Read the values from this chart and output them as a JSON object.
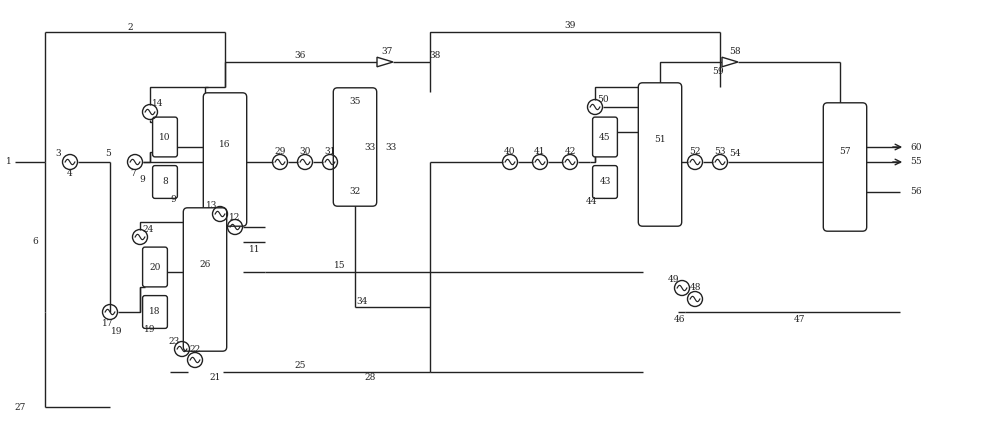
{
  "fig_width": 10.0,
  "fig_height": 4.42,
  "dpi": 100,
  "bg_color": "#ffffff",
  "line_color": "#222222",
  "lw": 1.0,
  "fs": 6.5
}
